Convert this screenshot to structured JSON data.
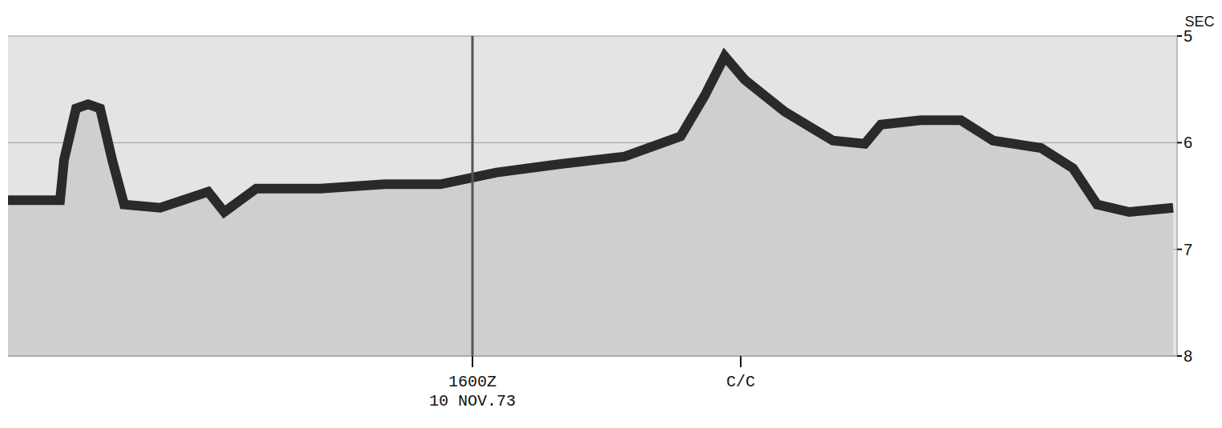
{
  "chart_data": {
    "type": "area",
    "y_label": "SEC",
    "x": [
      0,
      6.5,
      7,
      8.5,
      10,
      11.5,
      13,
      14.5,
      19,
      25,
      27,
      31,
      39,
      47,
      54,
      61,
      69,
      77,
      84,
      87,
      89.5,
      92,
      97,
      103,
      107,
      109,
      114,
      119,
      123,
      129,
      133,
      136,
      140,
      145.5
    ],
    "values": [
      6.54,
      6.54,
      6.16,
      5.68,
      5.64,
      5.68,
      6.16,
      6.58,
      6.61,
      6.46,
      6.65,
      6.43,
      6.43,
      6.39,
      6.39,
      6.28,
      6.2,
      6.13,
      5.94,
      5.56,
      5.19,
      5.41,
      5.71,
      5.98,
      6.01,
      5.83,
      5.79,
      5.79,
      5.98,
      6.05,
      6.24,
      6.58,
      6.65,
      6.61
    ],
    "color": "#2a2a2a",
    "xlim": [
      0,
      146
    ],
    "xticks": [
      {
        "value": 58,
        "label": "1600Z"
      },
      {
        "value": 91.5,
        "label": "C/C"
      }
    ],
    "ylim": [
      5,
      8
    ],
    "yticks": [
      5,
      6,
      7,
      8
    ],
    "grid": true,
    "annotations": [
      {
        "text": "10 NOV.73",
        "x": 58
      }
    ]
  }
}
